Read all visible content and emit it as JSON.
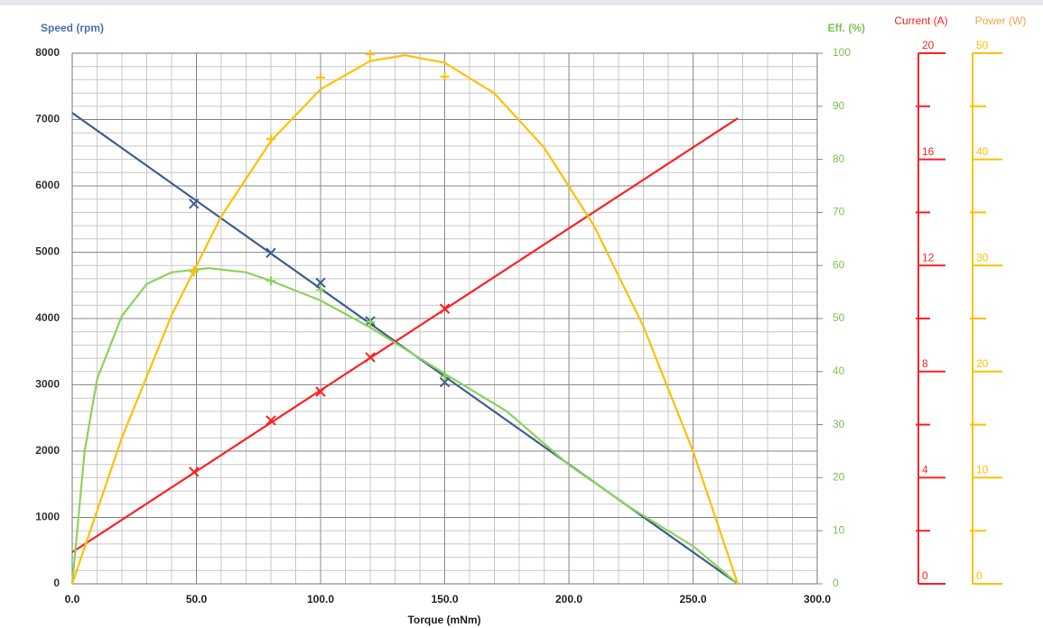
{
  "chart_data": {
    "type": "line",
    "x_label": "Torque (mNm)",
    "y_label": "Speed (rpm)",
    "y2_label": "Eff. (%)",
    "y3_label": "Current (A)",
    "y4_label": "Power (W)",
    "xlim": [
      0,
      300
    ],
    "xticks": [
      {
        "value": 0,
        "label": "0.0"
      },
      {
        "value": 50,
        "label": "50.0"
      },
      {
        "value": 100,
        "label": "100.0"
      },
      {
        "value": 150,
        "label": "150.0"
      },
      {
        "value": 200,
        "label": "200.0"
      },
      {
        "value": 250,
        "label": "250.0"
      },
      {
        "value": 300,
        "label": "300.0"
      }
    ],
    "ylim": [
      0,
      8000
    ],
    "yticks": [
      0,
      1000,
      2000,
      3000,
      4000,
      5000,
      6000,
      7000,
      8000
    ],
    "y2lim": [
      0,
      100
    ],
    "y2ticks": [
      0,
      10,
      20,
      30,
      40,
      50,
      60,
      70,
      80,
      90,
      100
    ],
    "y3lim": [
      0,
      20
    ],
    "y3ticks": [
      0,
      4,
      8,
      12,
      16,
      20
    ],
    "y3minor_ticks": [
      2,
      6,
      10,
      14,
      18
    ],
    "y4lim": [
      0,
      50
    ],
    "y4ticks": [
      0,
      10,
      20,
      30,
      40,
      50
    ],
    "y4minor_ticks": [
      5,
      15,
      25,
      35,
      45
    ],
    "grid": true,
    "y_color": "#4a72b0",
    "y2_color": "#7cc450",
    "y3_color": "#ff2020",
    "y4_color": "#f2a34a",
    "series": [
      {
        "axis": "y",
        "color": "#3e5f8e",
        "marker": "x",
        "x": [
          0,
          268
        ],
        "values": [
          7100,
          0
        ],
        "points_x": [
          49,
          80,
          100,
          120,
          150
        ],
        "points": [
          5730,
          4990,
          4540,
          3960,
          3040
        ]
      },
      {
        "axis": "y3",
        "color": "#ff2020",
        "marker": "x",
        "x": [
          0,
          268
        ],
        "values": [
          1.19,
          17.55
        ],
        "points_x": [
          49,
          80,
          100,
          120,
          150
        ],
        "points": [
          4.22,
          6.16,
          7.24,
          8.54,
          10.37
        ]
      },
      {
        "axis": "y2",
        "color": "#8cd35b",
        "marker": "+",
        "x": [
          0,
          5,
          10,
          20,
          30,
          40,
          55,
          70,
          80,
          100,
          120,
          130,
          150,
          175,
          200,
          225,
          250,
          268
        ],
        "values": [
          0,
          25,
          38.6,
          50.5,
          56.5,
          58.7,
          59.5,
          58.7,
          57.1,
          53.4,
          48.3,
          45.4,
          39.6,
          32.5,
          22.4,
          14.3,
          7.1,
          0
        ],
        "points_x": [
          49,
          80,
          100,
          120,
          150
        ],
        "points": [
          58.8,
          57.1,
          55.4,
          49.3,
          39.1
        ]
      },
      {
        "axis": "y4",
        "color": "#ffc000",
        "marker": "+",
        "x": [
          0,
          20,
          40,
          60,
          80,
          100,
          120,
          134,
          150,
          170,
          190,
          210,
          230,
          250,
          268
        ],
        "values": [
          0,
          13.76,
          25.3,
          34.62,
          41.73,
          46.61,
          49.27,
          49.81,
          49.1,
          46.22,
          41.11,
          33.78,
          24.25,
          12.49,
          0
        ],
        "points_x": [
          49,
          80,
          100,
          120,
          150
        ],
        "points": [
          29.5,
          41.9,
          47.7,
          49.9,
          47.8
        ]
      }
    ]
  }
}
